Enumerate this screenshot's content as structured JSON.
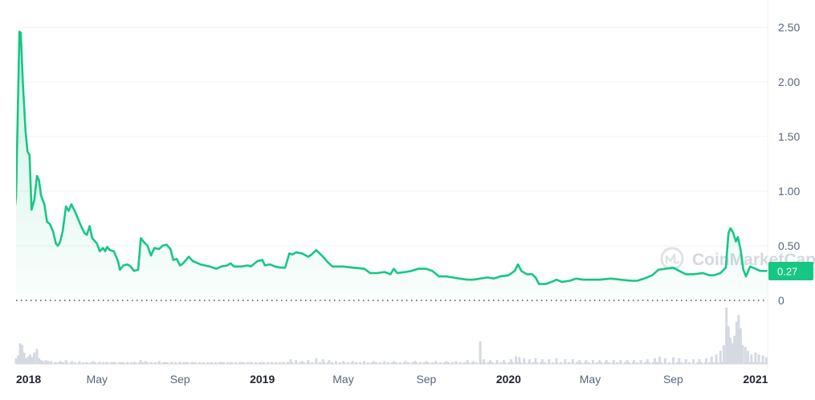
{
  "colors": {
    "line": "#16c784",
    "area_top": "#16c784",
    "grid": "#eff2f5",
    "volume": "#d5d9e1",
    "badge": "#16c784",
    "axis_text": "#58667e"
  },
  "watermark": {
    "text": "CoinMarketCap",
    "icon": "coinmarketcap-logo-icon"
  },
  "current_price_label": "0.27",
  "chart_data": {
    "type": "area",
    "title": "",
    "xlabel": "",
    "ylabel": "",
    "ylim": [
      0,
      2.75
    ],
    "yticks": [
      "2.50",
      "2.00",
      "1.50",
      "1.00",
      "0.50",
      "0"
    ],
    "ytick_values": [
      2.5,
      2.0,
      1.5,
      1.0,
      0.5,
      0
    ],
    "xlim": [
      "2018-01-01",
      "2021-01-19"
    ],
    "xticks": [
      {
        "label": "2018",
        "date": "2018-01-01",
        "year": true
      },
      {
        "label": "May",
        "date": "2018-05-01",
        "year": false
      },
      {
        "label": "Sep",
        "date": "2018-09-01",
        "year": false
      },
      {
        "label": "2019",
        "date": "2019-01-01",
        "year": true
      },
      {
        "label": "May",
        "date": "2019-05-01",
        "year": false
      },
      {
        "label": "Sep",
        "date": "2019-09-01",
        "year": false
      },
      {
        "label": "2020",
        "date": "2020-01-01",
        "year": true
      },
      {
        "label": "May",
        "date": "2020-05-01",
        "year": false
      },
      {
        "label": "Sep",
        "date": "2020-09-01",
        "year": false
      },
      {
        "label": "2021",
        "date": "2021-01-01",
        "year": true
      }
    ],
    "grid": true,
    "series": [
      {
        "values": [
          [
            "2017-12-20",
            0.24
          ],
          [
            "2018-01-01",
            0.95
          ],
          [
            "2018-01-06",
            2.46
          ],
          [
            "2018-01-08",
            2.45
          ],
          [
            "2018-01-11",
            2.0
          ],
          [
            "2018-01-15",
            1.55
          ],
          [
            "2018-01-18",
            1.36
          ],
          [
            "2018-01-21",
            1.33
          ],
          [
            "2018-01-24",
            0.83
          ],
          [
            "2018-01-28",
            0.92
          ],
          [
            "2018-02-01",
            1.14
          ],
          [
            "2018-02-04",
            1.1
          ],
          [
            "2018-02-07",
            0.96
          ],
          [
            "2018-02-12",
            0.88
          ],
          [
            "2018-02-16",
            0.72
          ],
          [
            "2018-02-20",
            0.7
          ],
          [
            "2018-02-25",
            0.63
          ],
          [
            "2018-03-01",
            0.52
          ],
          [
            "2018-03-04",
            0.5
          ],
          [
            "2018-03-07",
            0.53
          ],
          [
            "2018-03-11",
            0.63
          ],
          [
            "2018-03-16",
            0.86
          ],
          [
            "2018-03-20",
            0.82
          ],
          [
            "2018-03-24",
            0.88
          ],
          [
            "2018-03-28",
            0.83
          ],
          [
            "2018-04-02",
            0.76
          ],
          [
            "2018-04-06",
            0.7
          ],
          [
            "2018-04-12",
            0.62
          ],
          [
            "2018-04-16",
            0.6
          ],
          [
            "2018-04-20",
            0.68
          ],
          [
            "2018-04-24",
            0.57
          ],
          [
            "2018-05-01",
            0.52
          ],
          [
            "2018-05-05",
            0.45
          ],
          [
            "2018-05-10",
            0.48
          ],
          [
            "2018-05-13",
            0.45
          ],
          [
            "2018-05-16",
            0.49
          ],
          [
            "2018-05-20",
            0.46
          ],
          [
            "2018-05-26",
            0.45
          ],
          [
            "2018-06-01",
            0.36
          ],
          [
            "2018-06-04",
            0.28
          ],
          [
            "2018-06-09",
            0.32
          ],
          [
            "2018-06-15",
            0.33
          ],
          [
            "2018-06-20",
            0.31
          ],
          [
            "2018-06-25",
            0.27
          ],
          [
            "2018-07-01",
            0.28
          ],
          [
            "2018-07-05",
            0.57
          ],
          [
            "2018-07-10",
            0.53
          ],
          [
            "2018-07-15",
            0.5
          ],
          [
            "2018-07-20",
            0.41
          ],
          [
            "2018-07-25",
            0.48
          ],
          [
            "2018-08-01",
            0.47
          ],
          [
            "2018-08-06",
            0.5
          ],
          [
            "2018-08-12",
            0.51
          ],
          [
            "2018-08-18",
            0.47
          ],
          [
            "2018-08-22",
            0.37
          ],
          [
            "2018-08-27",
            0.38
          ],
          [
            "2018-09-01",
            0.32
          ],
          [
            "2018-09-04",
            0.33
          ],
          [
            "2018-09-10",
            0.37
          ],
          [
            "2018-09-14",
            0.4
          ],
          [
            "2018-09-20",
            0.36
          ],
          [
            "2018-10-01",
            0.33
          ],
          [
            "2018-10-15",
            0.31
          ],
          [
            "2018-10-25",
            0.29
          ],
          [
            "2018-11-01",
            0.31
          ],
          [
            "2018-11-10",
            0.32
          ],
          [
            "2018-11-15",
            0.34
          ],
          [
            "2018-11-20",
            0.31
          ],
          [
            "2018-12-01",
            0.31
          ],
          [
            "2018-12-10",
            0.32
          ],
          [
            "2018-12-15",
            0.31
          ],
          [
            "2018-12-25",
            0.36
          ],
          [
            "2019-01-01",
            0.37
          ],
          [
            "2019-01-05",
            0.32
          ],
          [
            "2019-01-12",
            0.33
          ],
          [
            "2019-01-20",
            0.31
          ],
          [
            "2019-01-28",
            0.3
          ],
          [
            "2019-02-04",
            0.3
          ],
          [
            "2019-02-10",
            0.43
          ],
          [
            "2019-02-15",
            0.42
          ],
          [
            "2019-02-20",
            0.44
          ],
          [
            "2019-03-01",
            0.43
          ],
          [
            "2019-03-10",
            0.4
          ],
          [
            "2019-03-15",
            0.42
          ],
          [
            "2019-03-22",
            0.46
          ],
          [
            "2019-04-01",
            0.4
          ],
          [
            "2019-04-08",
            0.35
          ],
          [
            "2019-04-15",
            0.31
          ],
          [
            "2019-05-01",
            0.31
          ],
          [
            "2019-05-15",
            0.3
          ],
          [
            "2019-06-01",
            0.29
          ],
          [
            "2019-06-10",
            0.25
          ],
          [
            "2019-06-20",
            0.25
          ],
          [
            "2019-07-01",
            0.26
          ],
          [
            "2019-07-10",
            0.24
          ],
          [
            "2019-07-15",
            0.29
          ],
          [
            "2019-07-20",
            0.25
          ],
          [
            "2019-08-01",
            0.26
          ],
          [
            "2019-08-10",
            0.27
          ],
          [
            "2019-08-20",
            0.29
          ],
          [
            "2019-09-01",
            0.29
          ],
          [
            "2019-09-10",
            0.27
          ],
          [
            "2019-09-20",
            0.22
          ],
          [
            "2019-10-01",
            0.22
          ],
          [
            "2019-10-10",
            0.21
          ],
          [
            "2019-10-20",
            0.2
          ],
          [
            "2019-11-01",
            0.19
          ],
          [
            "2019-11-10",
            0.19
          ],
          [
            "2019-11-20",
            0.2
          ],
          [
            "2019-12-01",
            0.21
          ],
          [
            "2019-12-10",
            0.2
          ],
          [
            "2019-12-20",
            0.22
          ],
          [
            "2020-01-01",
            0.23
          ],
          [
            "2020-01-10",
            0.27
          ],
          [
            "2020-01-15",
            0.33
          ],
          [
            "2020-01-20",
            0.27
          ],
          [
            "2020-01-28",
            0.24
          ],
          [
            "2020-02-05",
            0.24
          ],
          [
            "2020-02-10",
            0.21
          ],
          [
            "2020-02-15",
            0.15
          ],
          [
            "2020-02-25",
            0.15
          ],
          [
            "2020-03-05",
            0.17
          ],
          [
            "2020-03-12",
            0.19
          ],
          [
            "2020-03-20",
            0.17
          ],
          [
            "2020-04-01",
            0.18
          ],
          [
            "2020-04-10",
            0.2
          ],
          [
            "2020-04-20",
            0.19
          ],
          [
            "2020-05-01",
            0.19
          ],
          [
            "2020-05-15",
            0.19
          ],
          [
            "2020-06-01",
            0.2
          ],
          [
            "2020-06-15",
            0.19
          ],
          [
            "2020-07-01",
            0.18
          ],
          [
            "2020-07-10",
            0.18
          ],
          [
            "2020-07-20",
            0.2
          ],
          [
            "2020-08-01",
            0.23
          ],
          [
            "2020-08-10",
            0.28
          ],
          [
            "2020-08-20",
            0.29
          ],
          [
            "2020-09-01",
            0.3
          ],
          [
            "2020-09-10",
            0.27
          ],
          [
            "2020-09-20",
            0.24
          ],
          [
            "2020-10-01",
            0.24
          ],
          [
            "2020-10-15",
            0.25
          ],
          [
            "2020-10-25",
            0.23
          ],
          [
            "2020-11-01",
            0.23
          ],
          [
            "2020-11-10",
            0.25
          ],
          [
            "2020-11-18",
            0.3
          ],
          [
            "2020-11-22",
            0.62
          ],
          [
            "2020-11-25",
            0.66
          ],
          [
            "2020-11-29",
            0.62
          ],
          [
            "2020-12-03",
            0.54
          ],
          [
            "2020-12-06",
            0.58
          ],
          [
            "2020-12-10",
            0.46
          ],
          [
            "2020-12-14",
            0.28
          ],
          [
            "2020-12-18",
            0.22
          ],
          [
            "2020-12-24",
            0.31
          ],
          [
            "2021-01-01",
            0.29
          ],
          [
            "2021-01-08",
            0.27
          ],
          [
            "2021-01-15",
            0.27
          ]
        ]
      }
    ],
    "volume": [
      [
        "2018-01-01",
        6
      ],
      [
        "2018-01-04",
        9
      ],
      [
        "2018-01-07",
        22
      ],
      [
        "2018-01-10",
        20
      ],
      [
        "2018-01-13",
        12
      ],
      [
        "2018-01-16",
        6
      ],
      [
        "2018-01-19",
        8
      ],
      [
        "2018-01-22",
        10
      ],
      [
        "2018-01-25",
        7
      ],
      [
        "2018-01-28",
        12
      ],
      [
        "2018-02-01",
        16
      ],
      [
        "2018-02-04",
        6
      ],
      [
        "2018-02-07",
        4
      ],
      [
        "2018-02-10",
        3
      ],
      [
        "2018-02-14",
        4
      ],
      [
        "2018-02-18",
        3
      ],
      [
        "2018-02-22",
        3
      ],
      [
        "2018-03-01",
        2
      ],
      [
        "2018-03-08",
        3
      ],
      [
        "2018-03-16",
        4
      ],
      [
        "2018-03-25",
        3
      ],
      [
        "2018-04-05",
        3
      ],
      [
        "2018-04-15",
        2
      ],
      [
        "2018-04-25",
        3
      ],
      [
        "2018-05-05",
        2
      ],
      [
        "2018-05-15",
        2
      ],
      [
        "2018-05-25",
        2
      ],
      [
        "2018-06-05",
        2
      ],
      [
        "2018-06-15",
        2
      ],
      [
        "2018-06-25",
        2
      ],
      [
        "2018-07-05",
        4
      ],
      [
        "2018-07-12",
        3
      ],
      [
        "2018-07-20",
        2
      ],
      [
        "2018-08-01",
        3
      ],
      [
        "2018-08-10",
        2
      ],
      [
        "2018-08-20",
        2
      ],
      [
        "2018-09-01",
        2
      ],
      [
        "2018-09-10",
        2
      ],
      [
        "2018-09-20",
        2
      ],
      [
        "2018-10-01",
        1
      ],
      [
        "2018-10-15",
        1
      ],
      [
        "2018-11-01",
        2
      ],
      [
        "2018-11-15",
        2
      ],
      [
        "2018-12-01",
        2
      ],
      [
        "2018-12-15",
        2
      ],
      [
        "2019-01-01",
        2
      ],
      [
        "2019-01-15",
        2
      ],
      [
        "2019-02-01",
        2
      ],
      [
        "2019-02-12",
        5
      ],
      [
        "2019-02-20",
        4
      ],
      [
        "2019-03-01",
        3
      ],
      [
        "2019-03-10",
        4
      ],
      [
        "2019-03-22",
        6
      ],
      [
        "2019-04-01",
        5
      ],
      [
        "2019-04-10",
        4
      ],
      [
        "2019-04-20",
        3
      ],
      [
        "2019-05-01",
        3
      ],
      [
        "2019-05-15",
        3
      ],
      [
        "2019-06-01",
        3
      ],
      [
        "2019-06-15",
        3
      ],
      [
        "2019-07-01",
        3
      ],
      [
        "2019-07-15",
        3
      ],
      [
        "2019-08-01",
        3
      ],
      [
        "2019-08-15",
        3
      ],
      [
        "2019-09-01",
        3
      ],
      [
        "2019-09-15",
        3
      ],
      [
        "2019-10-01",
        3
      ],
      [
        "2019-10-15",
        3
      ],
      [
        "2019-11-01",
        4
      ],
      [
        "2019-11-10",
        3
      ],
      [
        "2019-11-20",
        24
      ],
      [
        "2019-11-25",
        5
      ],
      [
        "2019-12-05",
        4
      ],
      [
        "2019-12-15",
        4
      ],
      [
        "2019-12-25",
        4
      ],
      [
        "2020-01-05",
        5
      ],
      [
        "2020-01-12",
        8
      ],
      [
        "2020-01-17",
        7
      ],
      [
        "2020-01-24",
        6
      ],
      [
        "2020-02-01",
        5
      ],
      [
        "2020-02-10",
        6
      ],
      [
        "2020-02-20",
        5
      ],
      [
        "2020-03-01",
        5
      ],
      [
        "2020-03-12",
        6
      ],
      [
        "2020-03-25",
        5
      ],
      [
        "2020-04-05",
        5
      ],
      [
        "2020-04-15",
        4
      ],
      [
        "2020-04-25",
        4
      ],
      [
        "2020-05-05",
        4
      ],
      [
        "2020-05-15",
        4
      ],
      [
        "2020-05-25",
        4
      ],
      [
        "2020-06-05",
        4
      ],
      [
        "2020-06-15",
        4
      ],
      [
        "2020-06-25",
        4
      ],
      [
        "2020-07-05",
        4
      ],
      [
        "2020-07-15",
        4
      ],
      [
        "2020-07-25",
        5
      ],
      [
        "2020-08-05",
        6
      ],
      [
        "2020-08-12",
        8
      ],
      [
        "2020-08-20",
        6
      ],
      [
        "2020-09-01",
        7
      ],
      [
        "2020-09-10",
        6
      ],
      [
        "2020-09-20",
        5
      ],
      [
        "2020-10-01",
        5
      ],
      [
        "2020-10-10",
        5
      ],
      [
        "2020-10-20",
        6
      ],
      [
        "2020-10-28",
        8
      ],
      [
        "2020-11-04",
        10
      ],
      [
        "2020-11-10",
        14
      ],
      [
        "2020-11-15",
        20
      ],
      [
        "2020-11-19",
        60
      ],
      [
        "2020-11-22",
        40
      ],
      [
        "2020-11-25",
        28
      ],
      [
        "2020-11-28",
        22
      ],
      [
        "2020-12-01",
        30
      ],
      [
        "2020-12-04",
        45
      ],
      [
        "2020-12-07",
        52
      ],
      [
        "2020-12-10",
        38
      ],
      [
        "2020-12-13",
        20
      ],
      [
        "2020-12-17",
        18
      ],
      [
        "2020-12-21",
        14
      ],
      [
        "2020-12-26",
        10
      ],
      [
        "2021-01-01",
        12
      ],
      [
        "2021-01-06",
        10
      ],
      [
        "2021-01-12",
        9
      ],
      [
        "2021-01-17",
        7
      ]
    ]
  }
}
